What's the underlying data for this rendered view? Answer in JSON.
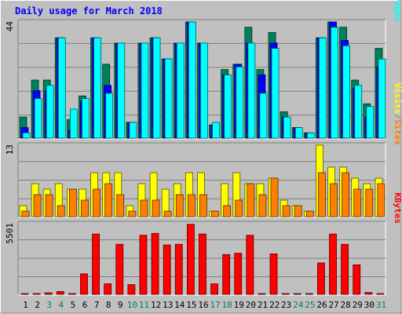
{
  "colors": {
    "background": "#c0c0c0",
    "grid": "#808080",
    "hits": "#00805c",
    "files": "#0000ff",
    "pages": "#00ffff",
    "visits": "#ffff00",
    "sites": "#ff8000",
    "kbytes": "#ff0000",
    "title": "#0000ff",
    "weekday_label": "#000000",
    "weekend_label": "#00805c"
  },
  "chart_data": {
    "type": "bar",
    "title": "Daily usage for March 2018",
    "categories": [
      "1",
      "2",
      "3",
      "4",
      "5",
      "6",
      "7",
      "8",
      "9",
      "10",
      "11",
      "12",
      "13",
      "14",
      "15",
      "16",
      "17",
      "18",
      "19",
      "20",
      "21",
      "22",
      "23",
      "24",
      "25",
      "26",
      "27",
      "28",
      "29",
      "30",
      "31"
    ],
    "weekend_days": [
      "3",
      "4",
      "10",
      "11",
      "17",
      "18",
      "24",
      "25",
      "31"
    ],
    "grid": true,
    "panels": [
      {
        "name": "usage",
        "scale_label": "44",
        "ylim": [
          0,
          44
        ],
        "legend": [
          "Pages",
          "/",
          "Files",
          "/",
          "Hits"
        ],
        "legend_colors": [
          "pages",
          "grid",
          "files",
          "grid",
          "hits"
        ],
        "series": [
          {
            "name": "Hits",
            "color_key": "hits",
            "values": [
              8,
              22,
              22,
              38,
              7,
              16,
              38,
              28,
              36,
              6,
              36,
              38,
              30,
              36,
              44,
              36,
              5,
              26,
              28,
              42,
              26,
              40,
              10,
              4,
              2,
              38,
              44,
              42,
              22,
              13,
              34
            ]
          },
          {
            "name": "Files",
            "color_key": "files",
            "values": [
              4,
              18,
              18,
              38,
              3,
              14,
              38,
              20,
              36,
              6,
              36,
              38,
              30,
              36,
              44,
              36,
              5,
              24,
              28,
              36,
              24,
              36,
              8,
              4,
              2,
              38,
              44,
              37,
              19,
              8,
              27
            ]
          },
          {
            "name": "Pages",
            "color_key": "pages",
            "values": [
              2,
              15,
              20,
              38,
              11,
              15,
              38,
              17,
              36,
              6,
              36,
              38,
              30,
              36,
              44,
              36,
              6,
              24,
              27,
              36,
              17,
              34,
              8,
              4,
              2,
              38,
              42,
              35,
              20,
              12,
              30
            ]
          }
        ]
      },
      {
        "name": "visitors",
        "scale_label": "13",
        "ylim": [
          0,
          13
        ],
        "legend": [
          "Sites",
          "/",
          "Visits"
        ],
        "legend_colors": [
          "sites",
          "grid",
          "visits"
        ],
        "series": [
          {
            "name": "Visits",
            "color_key": "visits",
            "values": [
              2,
              6,
              5,
              6,
              5,
              5,
              8,
              8,
              8,
              2,
              6,
              8,
              5,
              6,
              8,
              8,
              1,
              6,
              8,
              6,
              6,
              7,
              3,
              2,
              1,
              13,
              9,
              9,
              7,
              6,
              7
            ]
          },
          {
            "name": "Sites",
            "color_key": "sites",
            "values": [
              1,
              4,
              4,
              2,
              5,
              3,
              5,
              6,
              4,
              1,
              3,
              3,
              1,
              4,
              4,
              4,
              1,
              2,
              3,
              6,
              4,
              7,
              2,
              2,
              1,
              8,
              6,
              8,
              5,
              5,
              6
            ]
          }
        ]
      },
      {
        "name": "volume",
        "scale_label": "5501",
        "ylim": [
          0,
          5501
        ],
        "legend": [
          "KBytes"
        ],
        "legend_colors": [
          "kbytes"
        ],
        "series": [
          {
            "name": "KBytes",
            "color_key": "kbytes",
            "values": [
              44,
              44,
              120,
              220,
              44,
              1600,
              4700,
              820,
              3900,
              760,
              4600,
              4750,
              3850,
              3900,
              5450,
              4700,
              820,
              3100,
              3200,
              4600,
              60,
              3150,
              44,
              44,
              44,
              2450,
              4700,
              3900,
              2300,
              150,
              60
            ]
          }
        ]
      }
    ]
  }
}
